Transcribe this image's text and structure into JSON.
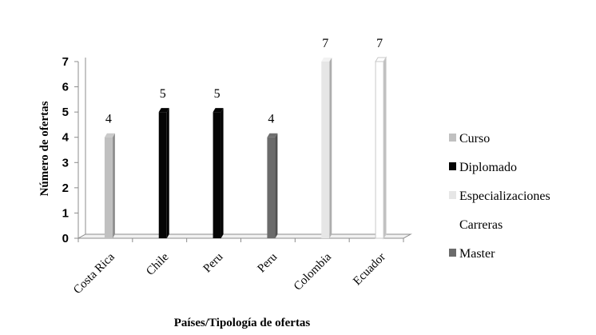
{
  "chart_data": {
    "type": "bar",
    "categories": [
      "Costa Rica",
      "Chile",
      "Peru",
      "Peru",
      "Colombia",
      "Ecuador"
    ],
    "series": [
      {
        "name": "Curso",
        "color": "#c0c0c0",
        "values": [
          4,
          null,
          null,
          null,
          null,
          null
        ]
      },
      {
        "name": "Diplomado",
        "color": "#050505",
        "values": [
          null,
          5,
          5,
          null,
          null,
          null
        ]
      },
      {
        "name": "Especializaciones",
        "color": "#e6e6e6",
        "values": [
          null,
          null,
          null,
          null,
          7,
          null
        ]
      },
      {
        "name": "Carreras",
        "color": "#ffffff",
        "values": [
          null,
          null,
          null,
          null,
          null,
          7
        ]
      },
      {
        "name": "Master",
        "color": "#6b6b6b",
        "values": [
          null,
          null,
          null,
          4,
          null,
          null
        ]
      }
    ],
    "data_labels": [
      "4",
      "5",
      "5",
      "4",
      "7",
      "7"
    ],
    "yticks": [
      "0",
      "1",
      "2",
      "3",
      "4",
      "5",
      "6",
      "7"
    ],
    "ylim": [
      0,
      7
    ],
    "xlabel": "Países/Tipología de ofertas",
    "ylabel": "Número de ofertas",
    "legend_position": "right",
    "grid": false,
    "style": "3d-column"
  }
}
